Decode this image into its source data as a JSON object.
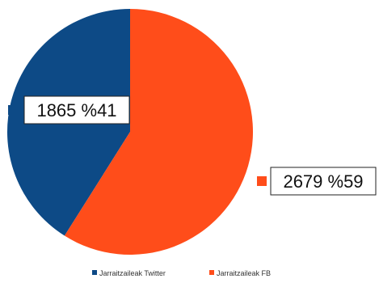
{
  "chart_data": {
    "type": "pie",
    "series": [
      {
        "name": "Jarraitzaileak Twitter",
        "value": 1865,
        "label": "1865 %41",
        "color": "#0d4a86"
      },
      {
        "name": "Jarraitzaileak FB",
        "value": 2679,
        "label": "2679 %59",
        "color": "#ff4d1a"
      }
    ],
    "legend_position": "bottom"
  }
}
